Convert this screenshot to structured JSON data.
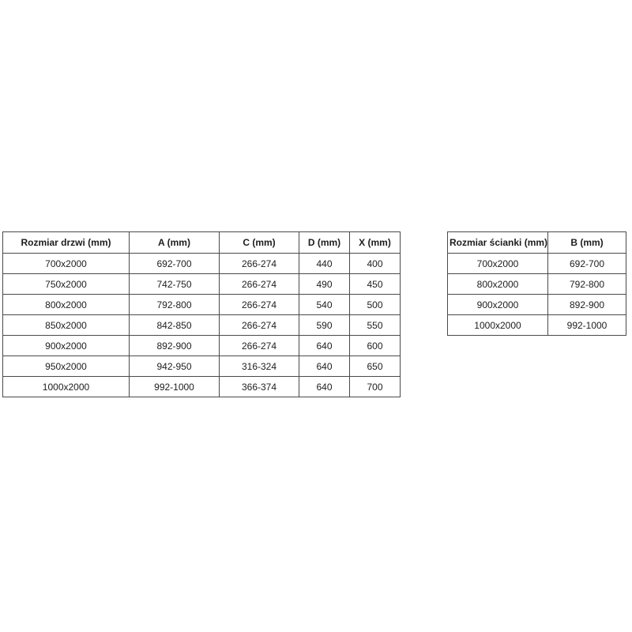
{
  "colors": {
    "border": "#4a4a4a",
    "text": "#1d1d1d",
    "background": "#ffffff"
  },
  "doors_table": {
    "columns": [
      "Rozmiar drzwi (mm)",
      "A (mm)",
      "C (mm)",
      "D (mm)",
      "X (mm)"
    ],
    "rows": [
      [
        "700x2000",
        "692-700",
        "266-274",
        "440",
        "400"
      ],
      [
        "750x2000",
        "742-750",
        "266-274",
        "490",
        "450"
      ],
      [
        "800x2000",
        "792-800",
        "266-274",
        "540",
        "500"
      ],
      [
        "850x2000",
        "842-850",
        "266-274",
        "590",
        "550"
      ],
      [
        "900x2000",
        "892-900",
        "266-274",
        "640",
        "600"
      ],
      [
        "950x2000",
        "942-950",
        "316-324",
        "640",
        "650"
      ],
      [
        "1000x2000",
        "992-1000",
        "366-374",
        "640",
        "700"
      ]
    ]
  },
  "wall_table": {
    "columns": [
      "Rozmiar ścianki (mm)",
      "B (mm)"
    ],
    "rows": [
      [
        "700x2000",
        "692-700"
      ],
      [
        "800x2000",
        "792-800"
      ],
      [
        "900x2000",
        "892-900"
      ],
      [
        "1000x2000",
        "992-1000"
      ]
    ]
  }
}
